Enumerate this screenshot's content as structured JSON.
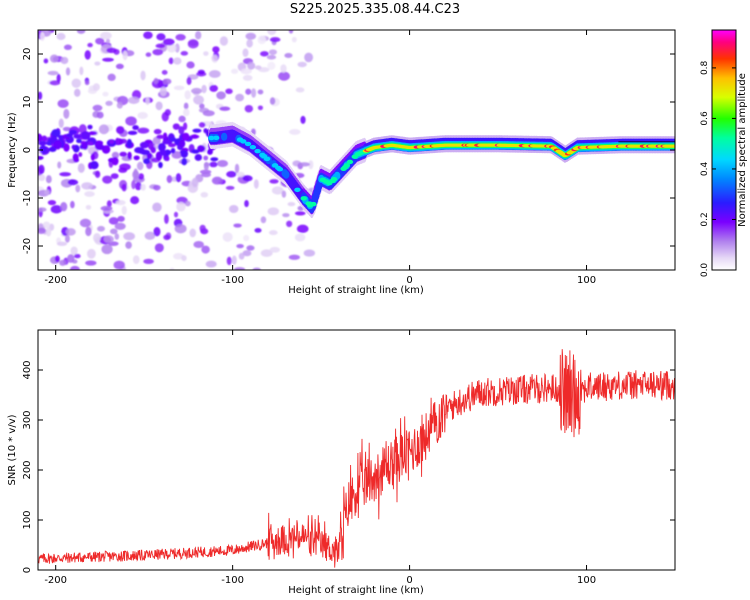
{
  "title": "S225.2025.335.08.44.C23",
  "chart_data": [
    {
      "type": "heatmap",
      "title": "S225.2025.335.08.44.C23",
      "xlabel": "Height of straight line (km)",
      "ylabel": "Frequency (Hz)",
      "xlim": [
        -210,
        150
      ],
      "ylim": [
        -25,
        25
      ],
      "xticks": [
        -200,
        -100,
        0,
        100
      ],
      "yticks": [
        -20,
        -10,
        0,
        10,
        20
      ],
      "ridge": {
        "x": [
          -110,
          -100,
          -90,
          -80,
          -70,
          -60,
          -55,
          -50,
          -45,
          -40,
          -30,
          -20,
          -10,
          0,
          20,
          50,
          80,
          88,
          95,
          120,
          150
        ],
        "y": [
          2.5,
          3,
          1,
          -2,
          -5,
          -10,
          -12,
          -6,
          -7,
          -5,
          -1,
          0.5,
          1,
          0.5,
          1,
          1,
          0.8,
          -1.2,
          0.5,
          0.8,
          0.8
        ]
      },
      "colorbar": {
        "label": "Normalized spectral amplitude",
        "ticks": [
          0.0,
          0.2,
          0.4,
          0.6,
          0.8
        ],
        "range": [
          0,
          0.95
        ]
      }
    },
    {
      "type": "line",
      "xlabel": "Height of straight line (km)",
      "ylabel": "SNR (10 * v/v)",
      "xlim": [
        -210,
        150
      ],
      "ylim": [
        0,
        480
      ],
      "xticks": [
        -200,
        -100,
        0,
        100
      ],
      "yticks": [
        0,
        100,
        200,
        300,
        400
      ],
      "color": "#ee2a2a",
      "series": [
        {
          "name": "SNR",
          "trend_x": [
            -210,
            -150,
            -100,
            -80,
            -60,
            -50,
            -40,
            -35,
            -30,
            -20,
            -10,
            0,
            10,
            20,
            30,
            40,
            60,
            80,
            90,
            100,
            120,
            150
          ],
          "trend_y": [
            18,
            25,
            35,
            50,
            60,
            45,
            30,
            130,
            160,
            185,
            215,
            235,
            270,
            320,
            340,
            355,
            360,
            365,
            350,
            365,
            370,
            370
          ]
        }
      ]
    }
  ]
}
